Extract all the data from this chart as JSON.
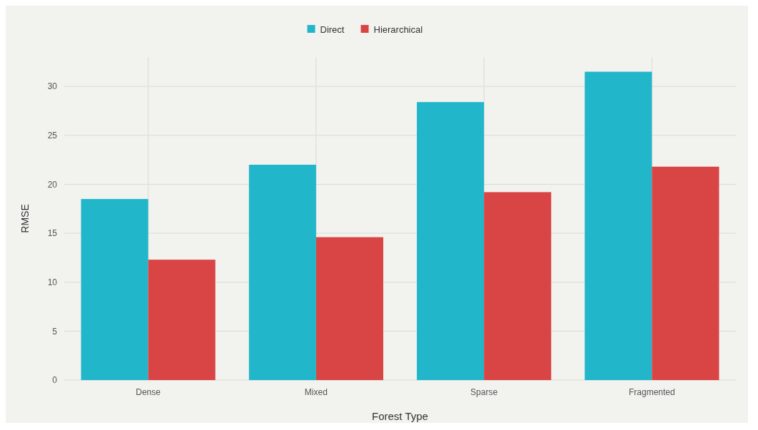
{
  "chart_data": {
    "type": "bar",
    "xlabel": "Forest Type",
    "ylabel": "RMSE",
    "categories": [
      "Dense",
      "Mixed",
      "Sparse",
      "Fragmented"
    ],
    "series": [
      {
        "name": "Direct",
        "color": "#22b6cb",
        "values": [
          18.5,
          22.0,
          28.4,
          31.5
        ]
      },
      {
        "name": "Hierarchical",
        "color": "#d94545",
        "values": [
          12.3,
          14.6,
          19.2,
          21.8
        ]
      }
    ],
    "ylim": [
      0,
      33
    ],
    "yticks": [
      0,
      5,
      10,
      15,
      20,
      25,
      30
    ],
    "grid": true,
    "legend": "top"
  }
}
